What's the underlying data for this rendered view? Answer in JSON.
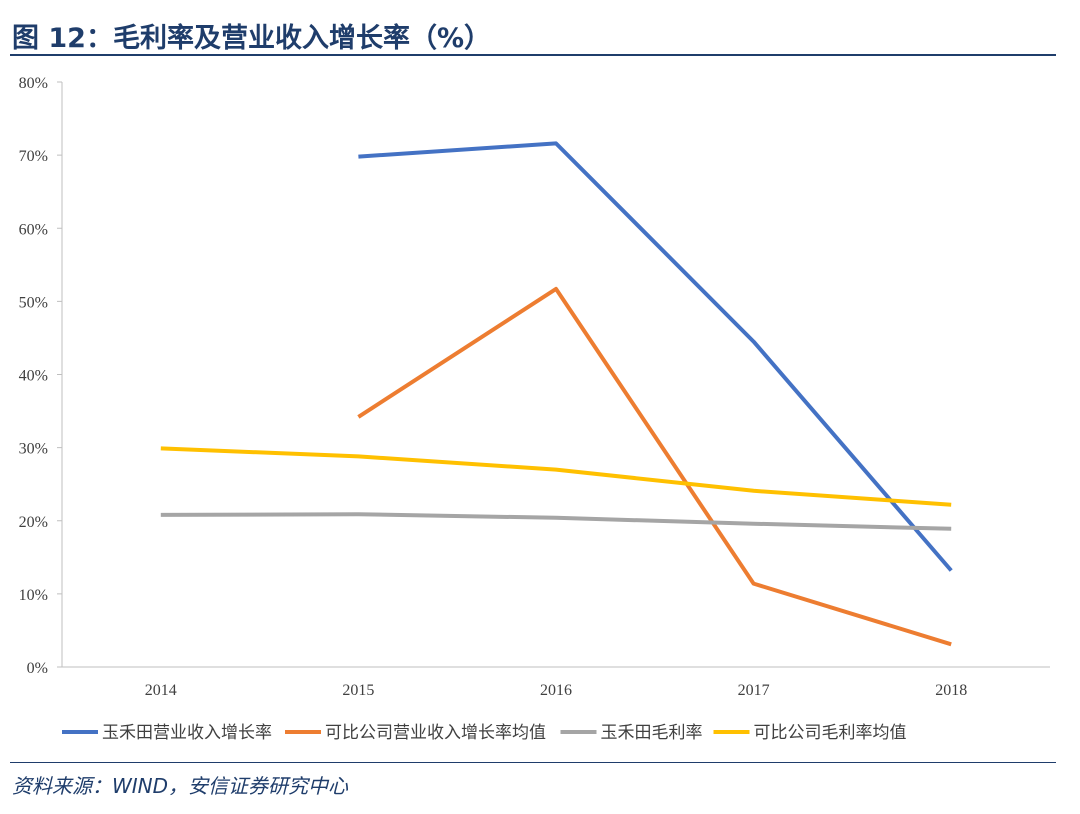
{
  "title": "图 12：毛利率及营业收入增长率（%）",
  "source": "资料来源：WIND，安信证券研究中心",
  "chart_data": {
    "type": "line",
    "x": [
      "2014",
      "2015",
      "2016",
      "2017",
      "2018"
    ],
    "ylim": [
      0,
      80
    ],
    "yticks": [
      "0%",
      "10%",
      "20%",
      "30%",
      "40%",
      "50%",
      "60%",
      "70%",
      "80%"
    ],
    "grid": false,
    "legend_position": "bottom",
    "series": [
      {
        "name": "玉禾田营业收入增长率",
        "color": "#4472c4",
        "values": [
          null,
          69.8,
          71.6,
          44.5,
          13.2
        ]
      },
      {
        "name": "可比公司营业收入增长率均值",
        "color": "#ed7d31",
        "values": [
          null,
          34.2,
          51.7,
          11.4,
          3.1
        ]
      },
      {
        "name": "玉禾田毛利率",
        "color": "#a5a5a5",
        "values": [
          20.8,
          20.9,
          20.4,
          19.6,
          18.9
        ]
      },
      {
        "name": "可比公司毛利率均值",
        "color": "#ffc000",
        "values": [
          29.9,
          28.8,
          27.0,
          24.1,
          22.2
        ]
      }
    ]
  }
}
